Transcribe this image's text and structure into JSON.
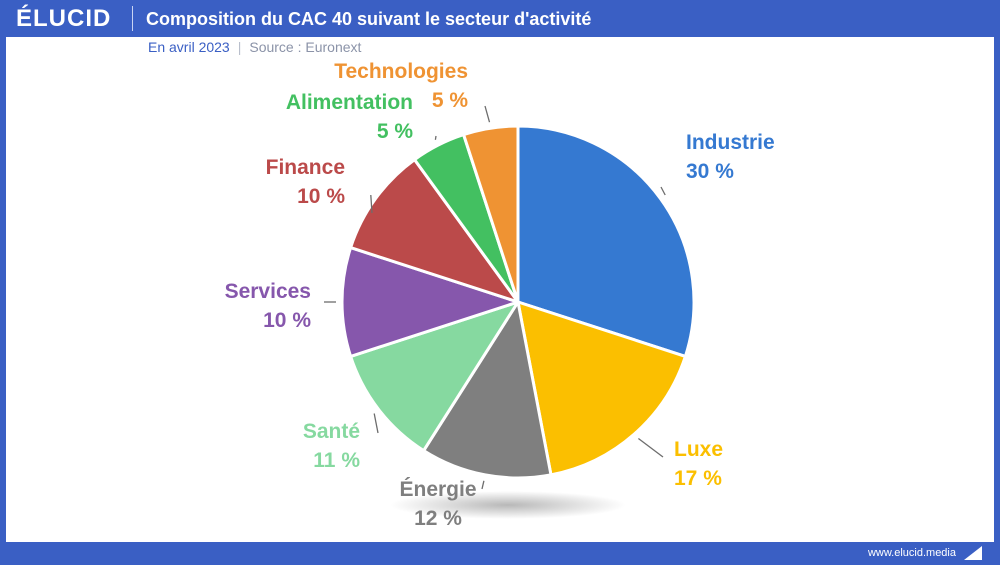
{
  "brand": {
    "logo": "ÉLUCID"
  },
  "header": {
    "title": "Composition du CAC 40 suivant le secteur d'activité"
  },
  "subtitle": {
    "date": "En avril 2023",
    "separator": "|",
    "source": "Source : Euronext"
  },
  "footer": {
    "url": "www.elucid.media"
  },
  "chart_data": {
    "type": "pie",
    "title": "Composition du CAC 40 suivant le secteur d'activité",
    "start_angle": "12 o'clock, clockwise",
    "slices": [
      {
        "label": "Industrie",
        "value": 30,
        "value_label": "30 %",
        "color": "#3579d1"
      },
      {
        "label": "Luxe",
        "value": 17,
        "value_label": "17 %",
        "color": "#fbbf00"
      },
      {
        "label": "Énergie",
        "value": 12,
        "value_label": "12 %",
        "color": "#7f7f7f"
      },
      {
        "label": "Santé",
        "value": 11,
        "value_label": "11 %",
        "color": "#86d9a0"
      },
      {
        "label": "Services",
        "value": 10,
        "value_label": "10 %",
        "color": "#8657ac"
      },
      {
        "label": "Finance",
        "value": 10,
        "value_label": "10 %",
        "color": "#bb4a4a"
      },
      {
        "label": "Alimentation",
        "value": 5,
        "value_label": "5 %",
        "color": "#43c061"
      },
      {
        "label": "Technologies",
        "value": 5,
        "value_label": "5 %",
        "color": "#ef9333"
      }
    ]
  }
}
